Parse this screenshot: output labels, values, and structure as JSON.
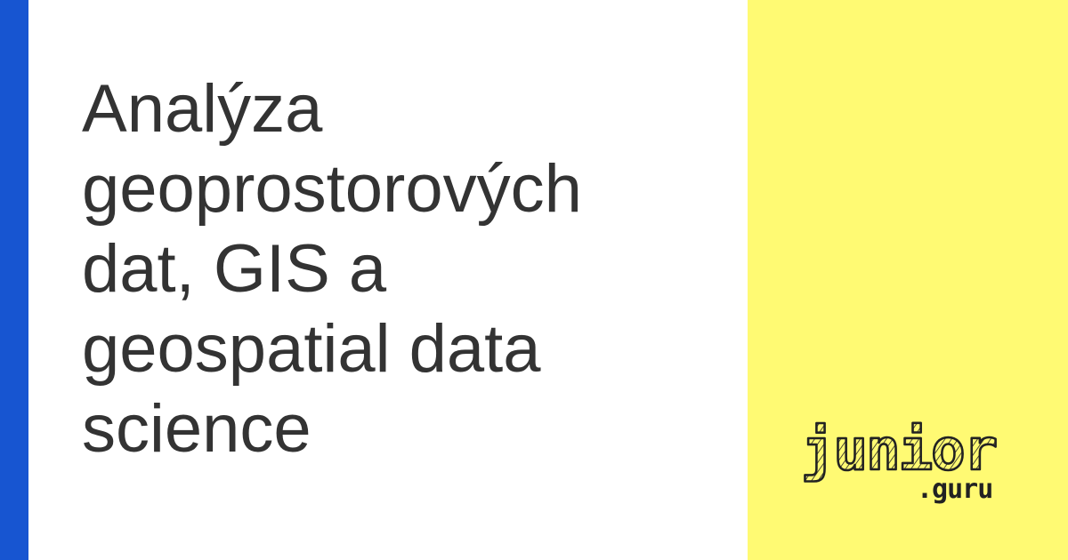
{
  "title_lines": [
    "Analýza",
    "geoprostorových",
    "dat, GIS a",
    "geospatial data",
    "science"
  ],
  "logo": {
    "main": "junior",
    "sub": ".guru"
  },
  "colors": {
    "accent_bar": "#1755d1",
    "side_panel": "#fffa73",
    "title_text": "#333333",
    "logo_ink": "#222222"
  }
}
